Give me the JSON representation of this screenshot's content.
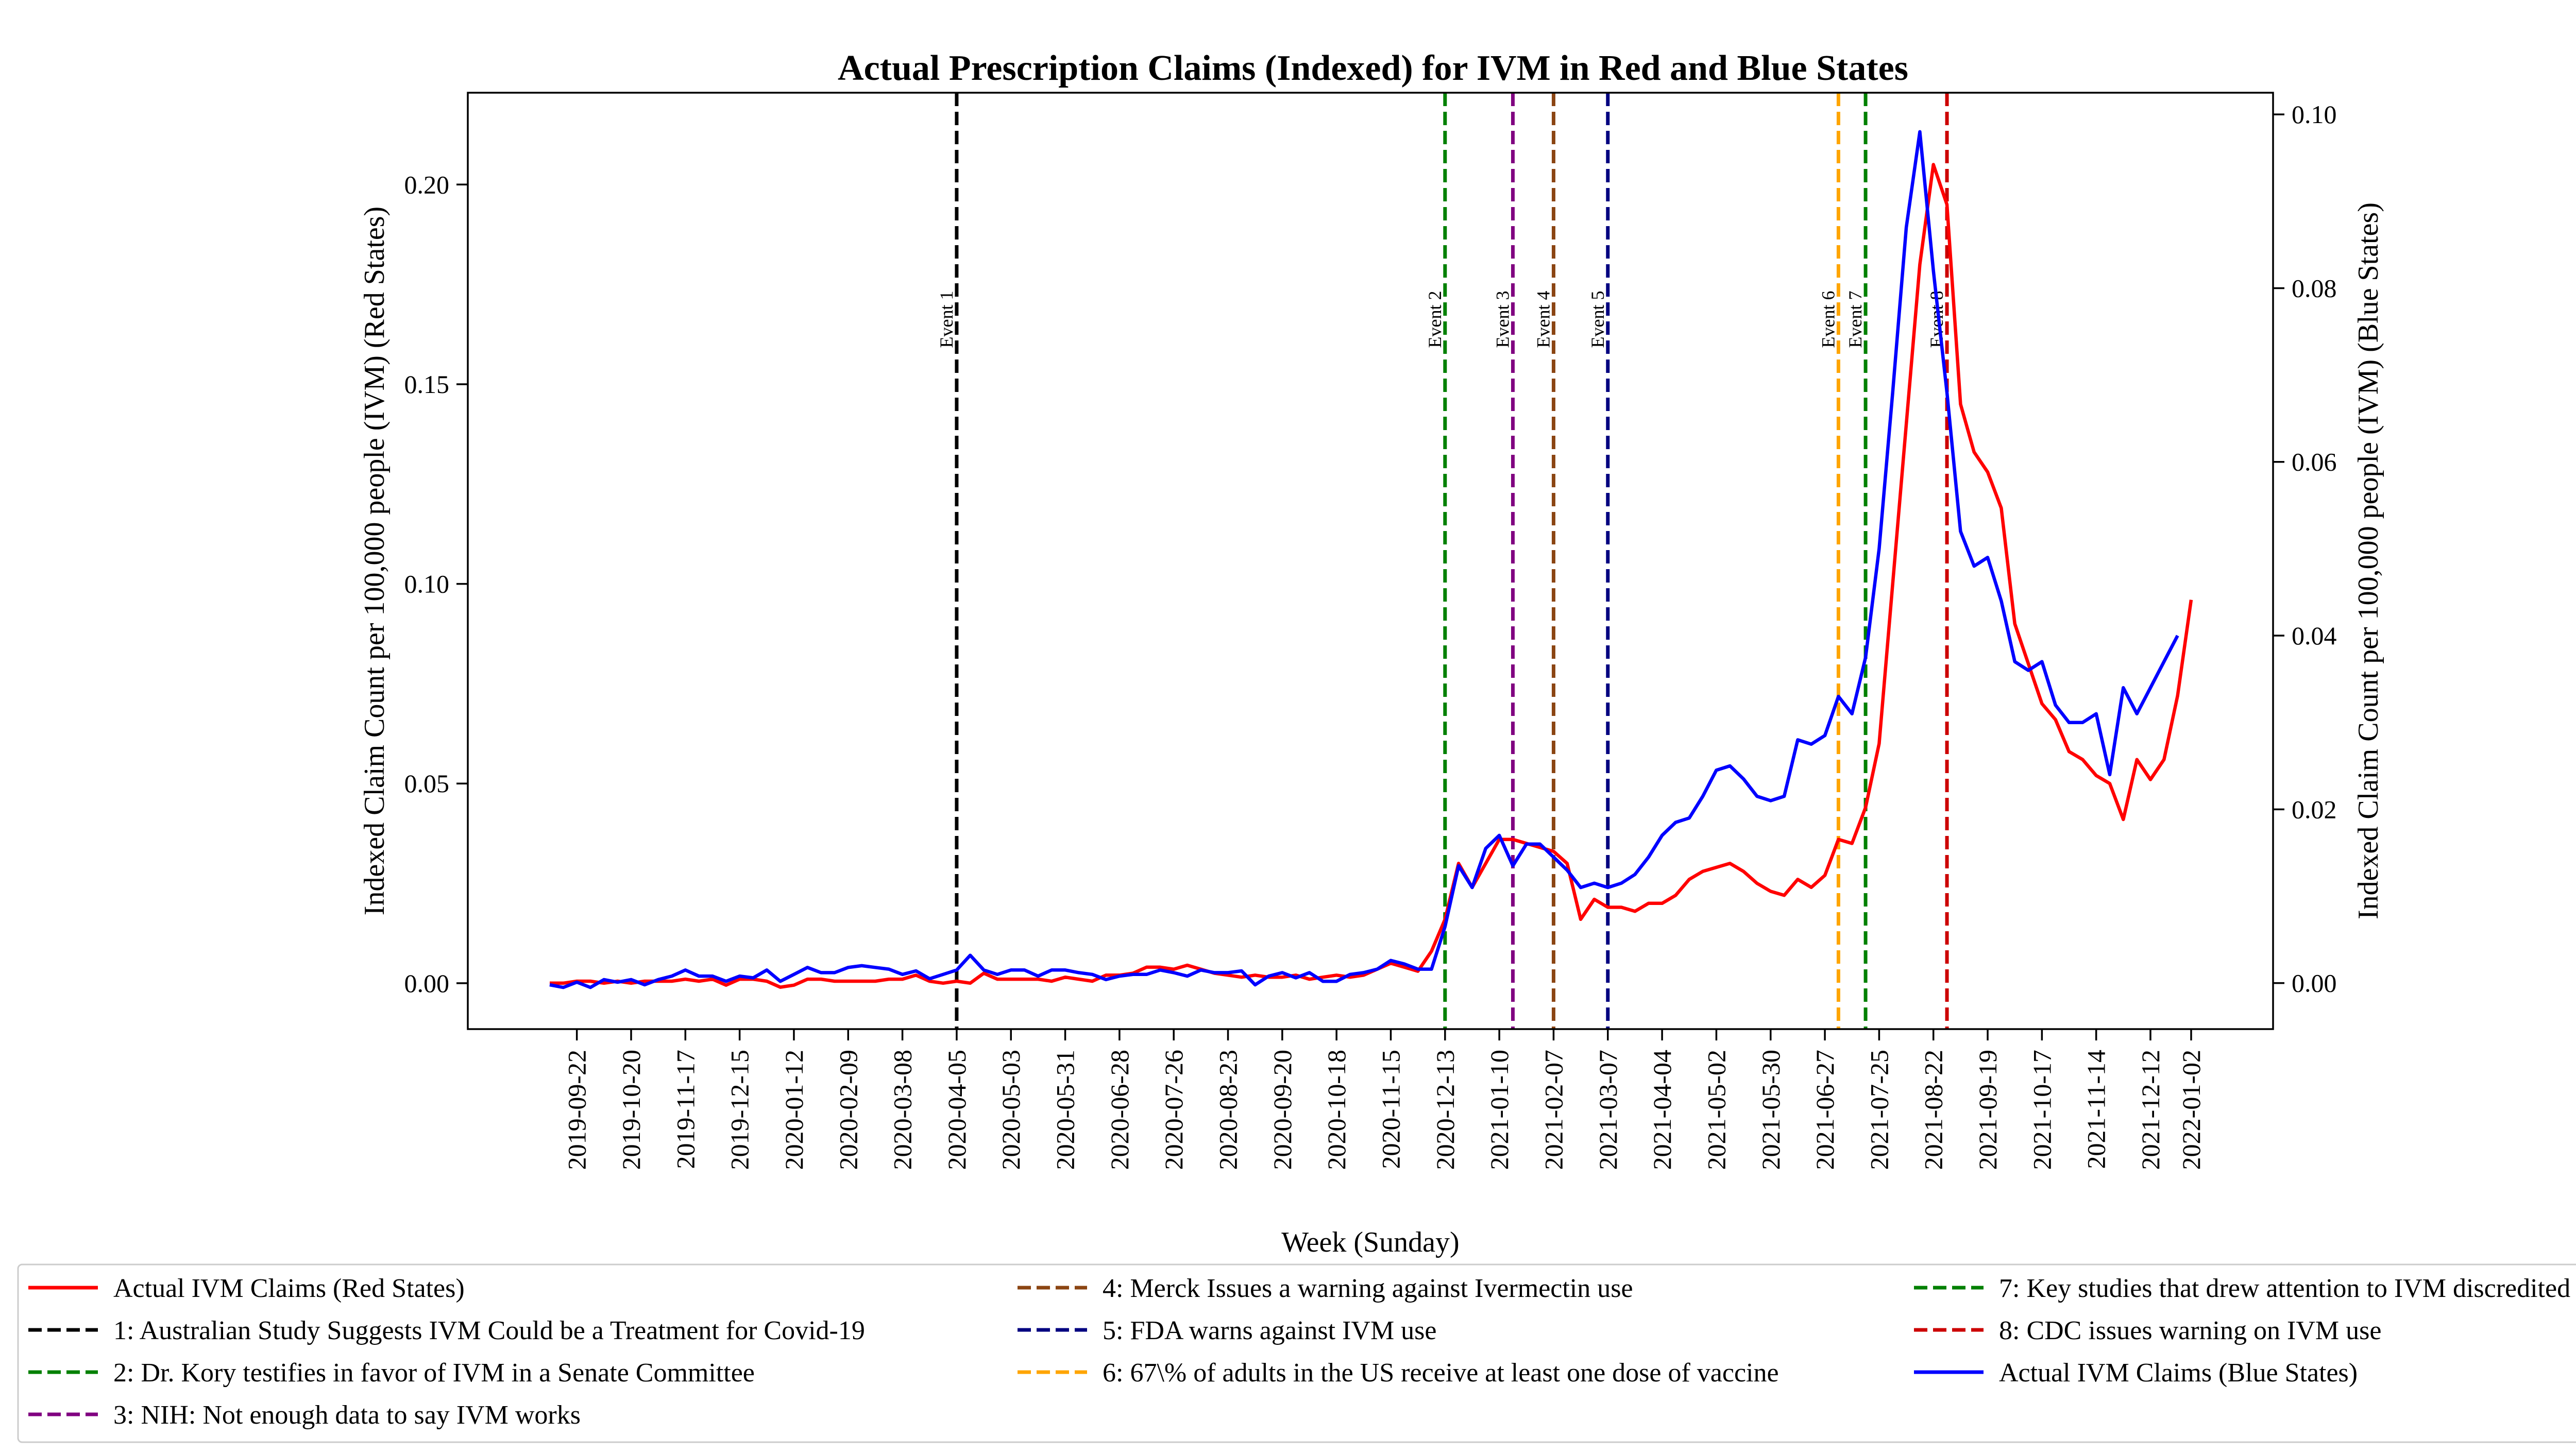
{
  "chart_data": {
    "type": "line",
    "title": "Actual Prescription Claims (Indexed) for IVM in Red and Blue States",
    "xlabel": "Week (Sunday)",
    "ylabel_left": "Indexed Claim Count per 100,000 people (IVM) (Red States)",
    "ylabel_right": "Indexed Claim Count per 100,000 people (IVM) (Blue States)",
    "x_start": "2019-09-08",
    "x_step_days": 7,
    "x_tick_labels": [
      "2019-09-22",
      "2019-10-20",
      "2019-11-17",
      "2019-12-15",
      "2020-01-12",
      "2020-02-09",
      "2020-03-08",
      "2020-04-05",
      "2020-05-03",
      "2020-05-31",
      "2020-06-28",
      "2020-07-26",
      "2020-08-23",
      "2020-09-20",
      "2020-10-18",
      "2020-11-15",
      "2020-12-13",
      "2021-01-10",
      "2021-02-07",
      "2021-03-07",
      "2021-04-04",
      "2021-05-02",
      "2021-05-30",
      "2021-06-27",
      "2021-07-25",
      "2021-08-22",
      "2021-09-19",
      "2021-10-17",
      "2021-11-14",
      "2021-12-12",
      "2022-01-02"
    ],
    "ylim_left": [
      -0.0115,
      0.223
    ],
    "ylim_right": [
      -0.0053,
      0.1025
    ],
    "yticks_left": [
      "0.00",
      "0.05",
      "0.10",
      "0.15",
      "0.20"
    ],
    "yticks_right": [
      "0.00",
      "0.02",
      "0.04",
      "0.06",
      "0.08",
      "0.10"
    ],
    "grid": false,
    "legend_placement": "below",
    "series": [
      {
        "name": "Actual IVM Claims (Red States)",
        "axis": "left",
        "color": "#ff0000",
        "values": [
          0.0,
          0.0,
          0.0005,
          0.0005,
          0.0,
          0.0005,
          0.0,
          0.0005,
          0.0005,
          0.0005,
          0.001,
          0.0005,
          0.001,
          -0.0005,
          0.001,
          0.001,
          0.0005,
          -0.001,
          -0.0005,
          0.001,
          0.001,
          0.0005,
          0.0005,
          0.0005,
          0.0005,
          0.001,
          0.001,
          0.002,
          0.0005,
          0.0,
          0.0005,
          0.0,
          0.0025,
          0.001,
          0.001,
          0.001,
          0.001,
          0.0005,
          0.0015,
          0.001,
          0.0005,
          0.002,
          0.002,
          0.0025,
          0.004,
          0.004,
          0.0035,
          0.0045,
          0.0035,
          0.0025,
          0.002,
          0.0015,
          0.002,
          0.0015,
          0.0015,
          0.002,
          0.001,
          0.0015,
          0.002,
          0.0015,
          0.002,
          0.0035,
          0.005,
          0.004,
          0.003,
          0.008,
          0.016,
          0.03,
          0.024,
          0.03,
          0.036,
          0.036,
          0.035,
          0.034,
          0.033,
          0.03,
          0.016,
          0.021,
          0.019,
          0.019,
          0.018,
          0.02,
          0.02,
          0.022,
          0.026,
          0.028,
          0.029,
          0.03,
          0.028,
          0.025,
          0.023,
          0.022,
          0.026,
          0.024,
          0.027,
          0.036,
          0.035,
          0.044,
          0.06,
          0.1,
          0.14,
          0.18,
          0.205,
          0.195,
          0.145,
          0.133,
          0.128,
          0.119,
          0.09,
          0.08,
          0.07,
          0.066,
          0.058,
          0.056,
          0.052,
          0.05,
          0.041,
          0.056,
          0.051,
          0.056,
          0.072,
          0.096
        ]
      },
      {
        "name": "Actual IVM Claims (Blue States)",
        "axis": "right",
        "color": "#0000ff",
        "values": [
          -0.0002,
          -0.0005,
          0.0001,
          -0.0005,
          0.0004,
          0.0001,
          0.0004,
          -0.0002,
          0.0004,
          0.0008,
          0.0015,
          0.0008,
          0.0008,
          0.0002,
          0.0008,
          0.0006,
          0.0015,
          0.0002,
          0.001,
          0.0018,
          0.0012,
          0.0012,
          0.0018,
          0.002,
          0.0018,
          0.0016,
          0.001,
          0.0014,
          0.0005,
          0.001,
          0.0015,
          0.0032,
          0.0015,
          0.001,
          0.0015,
          0.0015,
          0.0008,
          0.0015,
          0.0015,
          0.0012,
          0.001,
          0.0004,
          0.0008,
          0.001,
          0.001,
          0.0015,
          0.0012,
          0.0008,
          0.0015,
          0.0012,
          0.0012,
          0.0014,
          -0.0002,
          0.0008,
          0.0012,
          0.0006,
          0.0012,
          0.0002,
          0.0002,
          0.001,
          0.0012,
          0.0016,
          0.0026,
          0.0022,
          0.0016,
          0.0016,
          0.0065,
          0.0135,
          0.011,
          0.0155,
          0.017,
          0.0135,
          0.016,
          0.016,
          0.0145,
          0.013,
          0.011,
          0.0115,
          0.011,
          0.0115,
          0.0125,
          0.0145,
          0.017,
          0.0185,
          0.019,
          0.0215,
          0.0245,
          0.025,
          0.0235,
          0.0215,
          0.021,
          0.0215,
          0.028,
          0.0275,
          0.0285,
          0.033,
          0.031,
          0.0375,
          0.05,
          0.068,
          0.087,
          0.098,
          0.082,
          0.068,
          0.052,
          0.048,
          0.049,
          0.044,
          0.037,
          0.036,
          0.037,
          0.032,
          0.03,
          0.03,
          0.031,
          0.024,
          0.034,
          0.031,
          0.034,
          0.037,
          0.04
        ]
      }
    ],
    "events": [
      {
        "label": "Event 1",
        "index": 30,
        "color": "#000000",
        "legend": "1: Australian Study Suggests IVM Could be a Treatment for Covid-19"
      },
      {
        "label": "Event 2",
        "index": 66,
        "color": "#008000",
        "legend": "2: Dr. Kory testifies in favor of IVM in a Senate Committee"
      },
      {
        "label": "Event 3",
        "index": 71,
        "color": "#800080",
        "legend": "3: NIH: Not enough data to say IVM works"
      },
      {
        "label": "Event 4",
        "index": 74,
        "color": "#8b4513",
        "legend": "4: Merck Issues a warning against Ivermectin use"
      },
      {
        "label": "Event 5",
        "index": 78,
        "color": "#000080",
        "legend": "5: FDA warns against IVM use"
      },
      {
        "label": "Event 6",
        "index": 95,
        "color": "#ffa500",
        "legend": "6: 67\\% of adults in the US receive at least one dose of vaccine"
      },
      {
        "label": "Event 7",
        "index": 97,
        "color": "#008000",
        "legend": "7: Key studies that drew attention to IVM discredited"
      },
      {
        "label": "Event 8",
        "index": 103,
        "color": "#cc0000",
        "legend": "8: CDC issues warning on IVM use"
      }
    ]
  }
}
